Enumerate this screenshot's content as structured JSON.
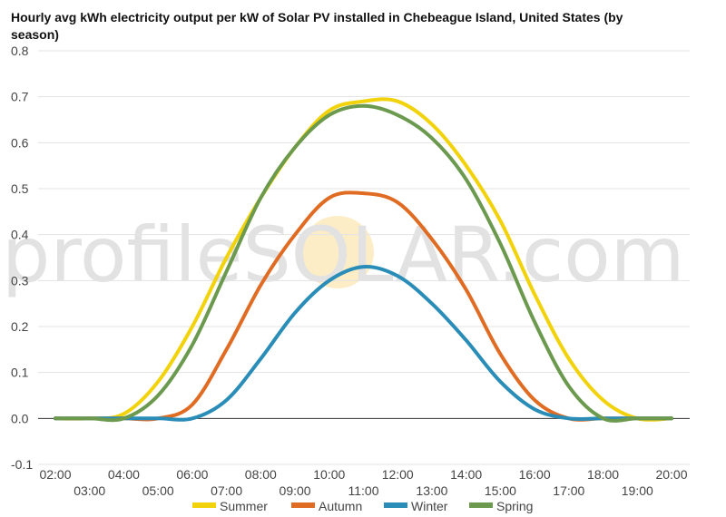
{
  "chart_data": {
    "type": "line",
    "title": "Hourly avg kWh electricity output per kW of Solar PV installed in Chebeague Island, United States (by season)",
    "xlabel": "",
    "ylabel": "",
    "x_ticks": [
      "02:00",
      "03:00",
      "04:00",
      "05:00",
      "06:00",
      "07:00",
      "08:00",
      "09:00",
      "10:00",
      "11:00",
      "12:00",
      "13:00",
      "14:00",
      "15:00",
      "16:00",
      "17:00",
      "18:00",
      "19:00",
      "20:00"
    ],
    "x_range": [
      2,
      20
    ],
    "y_ticks": [
      "-0.1",
      "0.0",
      "0.1",
      "0.2",
      "0.3",
      "0.4",
      "0.5",
      "0.6",
      "0.7",
      "0.8"
    ],
    "ylim": [
      -0.1,
      0.8
    ],
    "grid": true,
    "legend_position": "bottom",
    "watermark": "profileSOLAR.com",
    "x": [
      2,
      3,
      4,
      5,
      6,
      7,
      8,
      9,
      10,
      11,
      12,
      13,
      14,
      15,
      16,
      17,
      18,
      19,
      20
    ],
    "series": [
      {
        "name": "Summer",
        "color": "#f2d20a",
        "values": [
          0,
          0,
          0.01,
          0.08,
          0.2,
          0.35,
          0.48,
          0.59,
          0.67,
          0.69,
          0.69,
          0.64,
          0.55,
          0.43,
          0.27,
          0.13,
          0.04,
          0.0,
          0.0
        ]
      },
      {
        "name": "Autumn",
        "color": "#e06c23",
        "values": [
          0,
          0,
          0,
          0,
          0.03,
          0.15,
          0.29,
          0.4,
          0.48,
          0.49,
          0.47,
          0.39,
          0.28,
          0.14,
          0.04,
          0.0,
          0,
          0,
          0
        ]
      },
      {
        "name": "Winter",
        "color": "#2a8db8",
        "values": [
          0,
          0,
          0,
          0,
          0,
          0.04,
          0.13,
          0.23,
          0.3,
          0.33,
          0.31,
          0.25,
          0.17,
          0.08,
          0.02,
          0,
          0,
          0,
          0
        ]
      },
      {
        "name": "Spring",
        "color": "#6b9a4e",
        "values": [
          0,
          0,
          0,
          0.05,
          0.16,
          0.32,
          0.48,
          0.59,
          0.66,
          0.68,
          0.66,
          0.61,
          0.52,
          0.38,
          0.21,
          0.07,
          0.0,
          0,
          0
        ]
      }
    ]
  }
}
